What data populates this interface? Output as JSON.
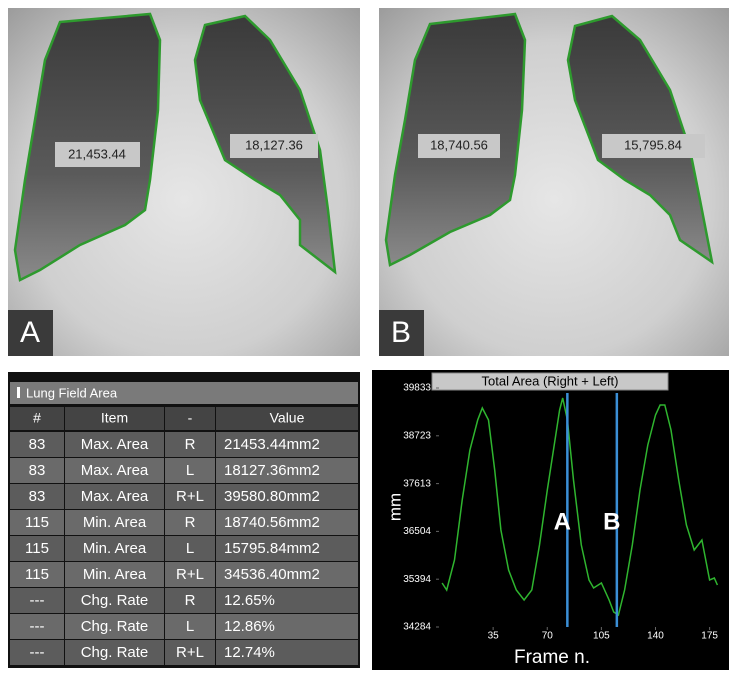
{
  "images": [
    {
      "label": "A",
      "right_area": "21,453.44",
      "left_area": "18,127.36"
    },
    {
      "label": "B",
      "right_area": "18,740.56",
      "left_area": "15,795.84"
    }
  ],
  "table": {
    "title": "Lung Field Area",
    "header": [
      "#",
      "Item",
      "-",
      "Value"
    ],
    "rows": [
      [
        "83",
        "Max. Area",
        "R",
        "21453.44mm2"
      ],
      [
        "83",
        "Max. Area",
        "L",
        "18127.36mm2"
      ],
      [
        "83",
        "Max. Area",
        "R+L",
        "39580.80mm2"
      ],
      [
        "115",
        "Min. Area",
        "R",
        "18740.56mm2"
      ],
      [
        "115",
        "Min. Area",
        "L",
        "15795.84mm2"
      ],
      [
        "115",
        "Min. Area",
        "R+L",
        "34536.40mm2"
      ],
      [
        "---",
        "Chg. Rate",
        "R",
        "12.65%"
      ],
      [
        "---",
        "Chg. Rate",
        "L",
        "12.86%"
      ],
      [
        "---",
        "Chg. Rate",
        "R+L",
        "12.74%"
      ]
    ]
  },
  "chart_data": {
    "type": "line",
    "title": "Total Area (Right + Left)",
    "y_label": "mm",
    "x_label": "Frame n.",
    "x": [
      2,
      5,
      10,
      15,
      20,
      25,
      28,
      32,
      36,
      40,
      45,
      50,
      55,
      60,
      65,
      70,
      75,
      78,
      80,
      83,
      87,
      92,
      97,
      100,
      105,
      110,
      113,
      116,
      120,
      125,
      130,
      135,
      140,
      143,
      146,
      150,
      155,
      160,
      165,
      170,
      175,
      178,
      180
    ],
    "series": [
      {
        "color": "#2fb52f",
        "values": [
          35305,
          35143,
          35840,
          37233,
          38393,
          39090,
          39369,
          39090,
          37929,
          36536,
          35607,
          35143,
          34911,
          35143,
          36188,
          37465,
          38626,
          39322,
          39601,
          39090,
          37697,
          36188,
          35375,
          35190,
          35305,
          34911,
          34632,
          34563,
          35143,
          36188,
          37465,
          38510,
          39206,
          39438,
          39438,
          38858,
          37697,
          36652,
          36072,
          36304,
          35375,
          35422,
          35259
        ]
      }
    ],
    "markers": [
      {
        "label": "A",
        "x": 83,
        "color": "#3b8fd6"
      },
      {
        "label": "B",
        "x": 115,
        "color": "#3b8fd6"
      }
    ],
    "xlim": [
      0,
      183
    ],
    "ylim": [
      34284,
      39833
    ],
    "xticks": [
      35,
      70,
      105,
      140,
      175
    ],
    "yticks": [
      34284,
      35394,
      36504,
      37613,
      38723,
      39833
    ]
  }
}
